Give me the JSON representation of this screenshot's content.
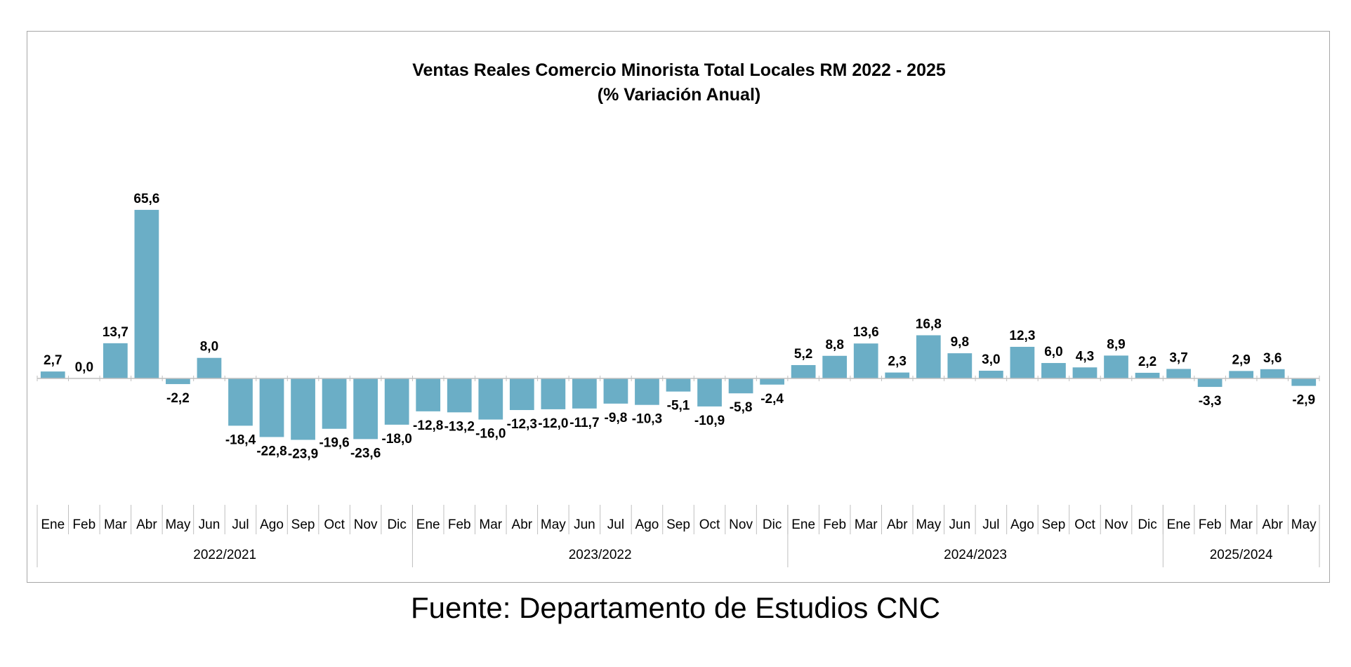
{
  "chart_data": {
    "type": "bar",
    "title": "Ventas Reales Comercio Minorista  Total Locales RM 2022 - 2025",
    "subtitle": "(% Variación Anual)",
    "bar_color": "#6BAEC6",
    "categories": [
      "Ene",
      "Feb",
      "Mar",
      "Abr",
      "May",
      "Jun",
      "Jul",
      "Ago",
      "Sep",
      "Oct",
      "Nov",
      "Dic",
      "Ene",
      "Feb",
      "Mar",
      "Abr",
      "May",
      "Jun",
      "Jul",
      "Ago",
      "Sep",
      "Oct",
      "Nov",
      "Dic",
      "Ene",
      "Feb",
      "Mar",
      "Abr",
      "May",
      "Jun",
      "Jul",
      "Ago",
      "Sep",
      "Oct",
      "Nov",
      "Dic",
      "Ene",
      "Feb",
      "Mar",
      "Abr",
      "May"
    ],
    "values": [
      2.7,
      0.0,
      13.7,
      65.6,
      -2.2,
      8.0,
      -18.4,
      -22.8,
      -23.9,
      -19.6,
      -23.6,
      -18.0,
      -12.8,
      -13.2,
      -16.0,
      -12.3,
      -12.0,
      -11.7,
      -9.8,
      -10.3,
      -5.1,
      -10.9,
      -5.8,
      -2.4,
      5.2,
      8.8,
      13.6,
      2.3,
      16.8,
      9.8,
      3.0,
      12.3,
      6.0,
      4.3,
      8.9,
      2.2,
      3.7,
      -3.3,
      2.9,
      3.6,
      -2.9
    ],
    "labels": [
      "2,7",
      "0,0",
      "13,7",
      "65,6",
      "-2,2",
      "8,0",
      "-18,4",
      "-22,8",
      "-23,9",
      "-19,6",
      "-23,6",
      "-18,0",
      "-12,8",
      "-13,2",
      "-16,0",
      "-12,3",
      "-12,0",
      "-11,7",
      "-9,8",
      "-10,3",
      "-5,1",
      "-10,9",
      "-5,8",
      "-2,4",
      "5,2",
      "8,8",
      "13,6",
      "2,3",
      "16,8",
      "9,8",
      "3,0",
      "12,3",
      "6,0",
      "4,3",
      "8,9",
      "2,2",
      "3,7",
      "-3,3",
      "2,9",
      "3,6",
      "-2,9"
    ],
    "groups": [
      {
        "label": "2022/2021",
        "count": 12
      },
      {
        "label": "2023/2022",
        "count": 12
      },
      {
        "label": "2024/2023",
        "count": 12
      },
      {
        "label": "2025/2024",
        "count": 5
      }
    ],
    "grid": false,
    "legend": "none"
  },
  "footer": {
    "source": "Fuente: Departamento de Estudios CNC"
  }
}
